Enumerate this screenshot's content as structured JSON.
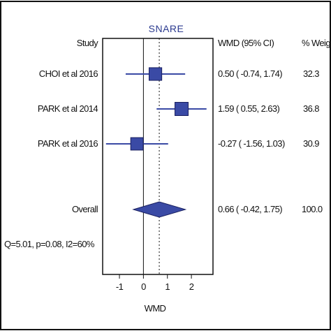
{
  "chart_data": {
    "type": "forest",
    "title": "SNARE",
    "column_headers": {
      "study": "Study",
      "effect": "WMD (95% CI)",
      "weight": "% Weight"
    },
    "studies": [
      {
        "name": "CHOI et al 2016",
        "wmd": 0.5,
        "ci_low": -0.74,
        "ci_high": 1.74,
        "ci_text": "0.50 ( -0.74, 1.74)",
        "weight": 32.3,
        "weight_text": "32.3"
      },
      {
        "name": "PARK et al 2014",
        "wmd": 1.59,
        "ci_low": 0.55,
        "ci_high": 2.63,
        "ci_text": "1.59 ( 0.55, 2.63)",
        "weight": 36.8,
        "weight_text": "36.8"
      },
      {
        "name": "PARK et al 2016",
        "wmd": -0.27,
        "ci_low": -1.56,
        "ci_high": 1.03,
        "ci_text": "-0.27 ( -1.56, 1.03)",
        "weight": 30.9,
        "weight_text": "30.9"
      }
    ],
    "overall": {
      "name": "Overall",
      "wmd": 0.66,
      "ci_low": -0.42,
      "ci_high": 1.75,
      "ci_text": "0.66 ( -0.42, 1.75)",
      "weight_text": "100.0"
    },
    "heterogeneity": "Q=5.01, p=0.08, I2=60%",
    "xlabel": "WMD",
    "xticks": [
      -1,
      0,
      1,
      2
    ],
    "xtick_labels": [
      "-1",
      "0",
      "1",
      "2"
    ],
    "xlim": [
      -1.7,
      2.9
    ],
    "null_line": 0,
    "colors": {
      "marker": "#3a4aa5",
      "marker_stroke": "#1a2060",
      "ci_line": "#3a4aa5",
      "title": "#2b3a8f",
      "axis": "#111111"
    }
  }
}
